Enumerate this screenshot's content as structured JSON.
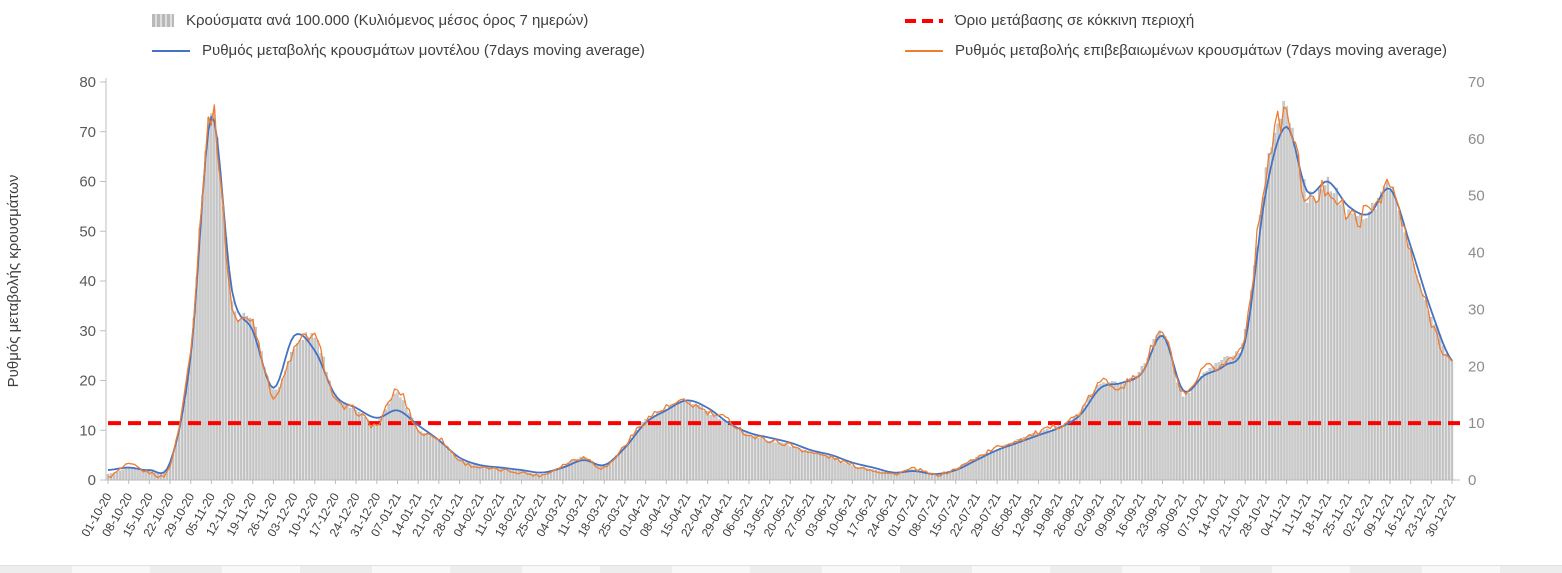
{
  "chart_data": {
    "type": "line",
    "title": "",
    "ylabel_left": "Ρυθμός μεταβολής κρουσμάτων",
    "xlabel": "",
    "ylim_left": [
      0,
      80
    ],
    "ylim_right": [
      0,
      70
    ],
    "left_ticks": [
      0,
      10,
      20,
      30,
      40,
      50,
      60,
      70,
      80
    ],
    "right_ticks": [
      0,
      10,
      20,
      30,
      40,
      50,
      60,
      70
    ],
    "grid": false,
    "legend_position": "top",
    "categories": [
      "01-10-20",
      "08-10-20",
      "15-10-20",
      "22-10-20",
      "29-10-20",
      "05-11-20",
      "12-11-20",
      "19-11-20",
      "26-11-20",
      "03-12-20",
      "10-12-20",
      "17-12-20",
      "24-12-20",
      "31-12-20",
      "07-01-21",
      "14-01-21",
      "21-01-21",
      "28-01-21",
      "04-02-21",
      "11-02-21",
      "18-02-21",
      "25-02-21",
      "04-03-21",
      "11-03-21",
      "18-03-21",
      "25-03-21",
      "01-04-21",
      "08-04-21",
      "15-04-21",
      "22-04-21",
      "29-04-21",
      "06-05-21",
      "13-05-21",
      "20-05-21",
      "27-05-21",
      "03-06-21",
      "10-06-21",
      "17-06-21",
      "24-06-21",
      "01-07-21",
      "08-07-21",
      "15-07-21",
      "22-07-21",
      "29-07-21",
      "05-08-21",
      "12-08-21",
      "19-08-21",
      "26-08-21",
      "02-09-21",
      "09-09-21",
      "16-09-21",
      "23-09-21",
      "30-09-21",
      "07-10-21",
      "14-10-21",
      "21-10-21",
      "28-10-21",
      "04-11-21",
      "11-11-21",
      "18-11-21",
      "25-11-21",
      "02-12-21",
      "09-12-21",
      "16-12-21",
      "23-12-21",
      "30-12-21"
    ],
    "series": [
      {
        "id": "bars",
        "name": "Κρούσματα ανά 100.000 (Κυλιόμενος μέσος όρος 7 ημερών)",
        "kind": "bar",
        "axis": "right",
        "color": "#cbcbcb",
        "values": [
          1,
          2,
          1.5,
          3,
          22,
          66,
          32,
          28,
          16,
          23,
          25,
          15,
          12.5,
          10,
          15,
          9,
          7,
          3.5,
          2.5,
          2,
          1.5,
          1,
          2.5,
          4,
          2.5,
          6,
          10.5,
          12.5,
          14,
          12,
          10,
          8,
          7,
          6,
          5,
          4,
          2.5,
          1.8,
          1.2,
          1.8,
          1,
          2,
          4,
          5.5,
          7,
          8.5,
          9.5,
          12,
          17,
          17,
          19.5,
          26,
          15,
          19,
          21,
          26,
          54,
          65,
          50,
          52,
          47,
          47,
          52,
          40,
          29,
          21
        ]
      },
      {
        "id": "threshold",
        "name": "Όριο μετάβασης σε κόκκινη περιοχή",
        "kind": "threshold",
        "axis": "right",
        "color": "#FF0000",
        "value": 10
      },
      {
        "id": "model",
        "name": "Ρυθμός μεταβολής κρουσμάτων μοντέλου (7days moving average)",
        "kind": "line",
        "axis": "left",
        "color": "#4472C4",
        "values": [
          2,
          2.5,
          2,
          3.5,
          25,
          73,
          38,
          30,
          18.5,
          29,
          26,
          17,
          14.5,
          12.5,
          14,
          11,
          8,
          4.5,
          3,
          2.5,
          2,
          1.5,
          2.5,
          4,
          3,
          6.5,
          11.5,
          14,
          16,
          14.5,
          11.5,
          9.5,
          8.5,
          7.5,
          6,
          5,
          3.5,
          2.5,
          1.5,
          1.8,
          1.2,
          2,
          4,
          6,
          7.5,
          9,
          10.5,
          13,
          18.5,
          19.5,
          21.5,
          29,
          18,
          21,
          23,
          28,
          58,
          71,
          58,
          60,
          55,
          53.5,
          58.5,
          47,
          34,
          24
        ]
      },
      {
        "id": "confirmed",
        "name": "Ρυθμός μεταβολής επιβεβαιωμένων κρουσμάτων (7days moving average)",
        "kind": "line",
        "axis": "left",
        "color": "#ED7D31",
        "values": [
          0.5,
          3,
          1.5,
          3,
          27,
          74,
          35,
          32,
          17,
          26,
          28.5,
          16,
          14,
          11,
          18,
          10,
          8.5,
          4,
          2.5,
          2,
          1.5,
          1,
          3,
          4.5,
          2.5,
          7,
          12,
          14.5,
          15.5,
          13.5,
          12,
          9,
          8,
          7,
          5.5,
          4.5,
          3,
          2,
          1.2,
          2.2,
          1,
          2.2,
          4.5,
          6.5,
          8,
          9.5,
          11,
          13.5,
          19.5,
          19,
          22,
          29.5,
          17,
          22,
          23.5,
          30,
          62,
          73,
          56,
          59,
          53,
          54,
          59,
          45,
          32,
          23.5
        ]
      }
    ]
  }
}
